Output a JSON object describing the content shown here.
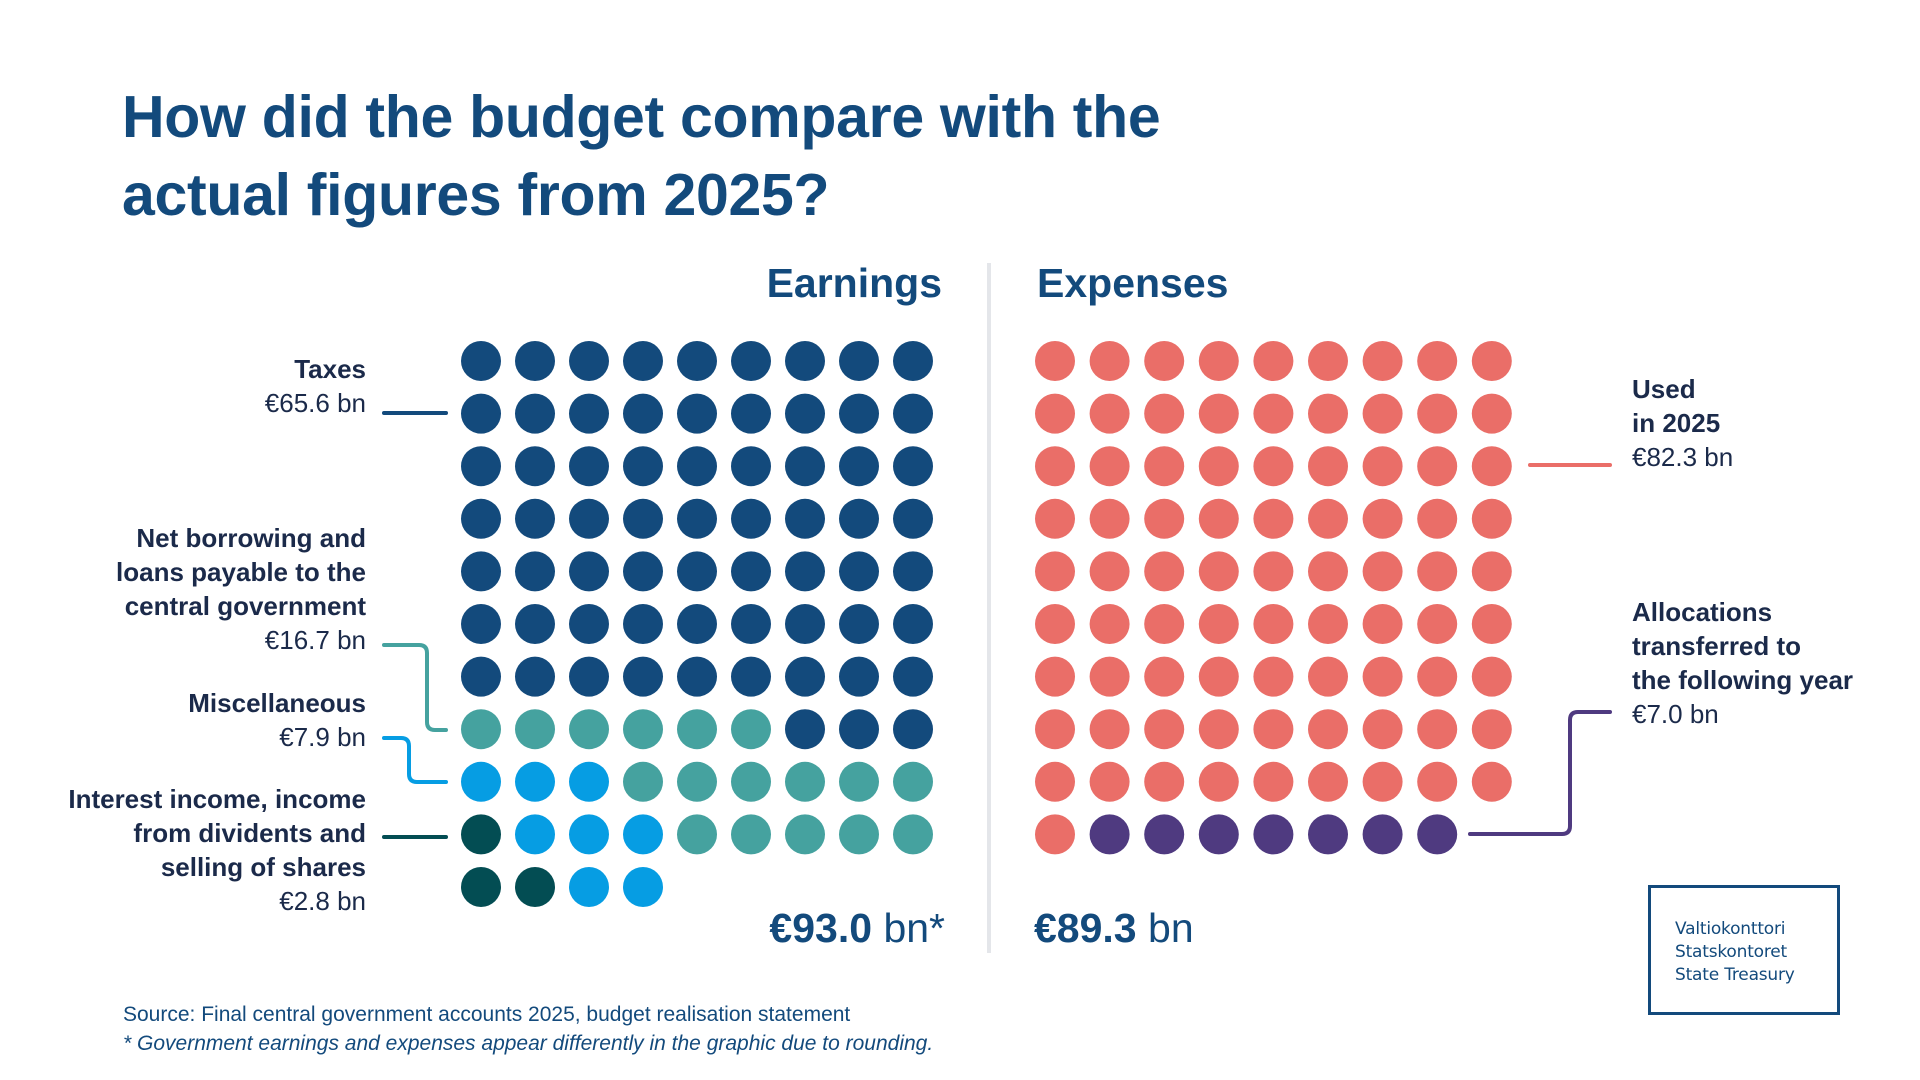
{
  "title_line1": "How did the budget compare with the",
  "title_line2": "actual figures from 2025?",
  "colors": {
    "title": "#134a7c",
    "taxes": "#134a7c",
    "net_borrowing": "#45a29f",
    "miscellaneous": "#069de3",
    "interest_income": "#034d53",
    "used": "#ea6e68",
    "allocations": "#4f3a80",
    "divider": "#e4e6ea"
  },
  "earnings": {
    "heading": "Earnings",
    "total_value": "€93.0",
    "total_unit": "bn*",
    "labels": [
      {
        "name": "Taxes",
        "value": "€65.6 bn"
      },
      {
        "name_lines": [
          "Net borrowing and",
          "loans payable to the",
          "central government"
        ],
        "value": "€16.7 bn"
      },
      {
        "name": "Miscellaneous",
        "value": "€7.9 bn"
      },
      {
        "name_lines": [
          "Interest income, income",
          "from dividents and",
          "selling of shares"
        ],
        "value": "€2.8 bn"
      }
    ]
  },
  "expenses": {
    "heading": "Expenses",
    "total_value": "€89.3",
    "total_unit": "bn",
    "labels": [
      {
        "name_lines": [
          "Used",
          "in 2025"
        ],
        "value": "€82.3 bn"
      },
      {
        "name_lines": [
          "Allocations",
          "transferred to",
          "the following year"
        ],
        "value": "€7.0 bn"
      }
    ]
  },
  "source": {
    "line": "Source: Final central government accounts 2025, budget realisation statement",
    "note": "* Government earnings and expenses appear differently in the graphic due to rounding."
  },
  "logo": [
    "Valtiokonttori",
    "Statskontoret",
    "State Treasury"
  ],
  "chart_data": {
    "type": "waffle",
    "title": "How did the budget compare with the actual figures from 2025?",
    "unit": "€ bn (1 dot ≈ €1 bn)",
    "panels": [
      {
        "name": "Earnings",
        "total": 93.0,
        "total_label": "€93.0 bn*",
        "columns": 9,
        "series": [
          {
            "name": "Taxes",
            "value": 65.6,
            "dots": 66,
            "color": "#134a7c"
          },
          {
            "name": "Net borrowing and loans payable to the central government",
            "value": 16.7,
            "dots": 17,
            "color": "#45a29f"
          },
          {
            "name": "Miscellaneous",
            "value": 7.9,
            "dots": 8,
            "color": "#069de3"
          },
          {
            "name": "Interest income, income from dividents and selling of shares",
            "value": 2.8,
            "dots": 3,
            "color": "#034d53"
          }
        ],
        "grid": [
          "AAAAAAAAA",
          "AAAAAAAAA",
          "AAAAAAAAA",
          "AAAAAAAAA",
          "AAAAAAAAA",
          "AAAAAAAAA",
          "AAAAAAAAA",
          "BBBBBBAAA",
          "CCCBBBBBB",
          "DCCCBBBBB",
          "DDCC"
        ]
      },
      {
        "name": "Expenses",
        "total": 89.3,
        "total_label": "€89.3 bn",
        "columns": 9,
        "series": [
          {
            "name": "Used in 2025",
            "value": 82.3,
            "dots": 82,
            "color": "#ea6e68"
          },
          {
            "name": "Allocations transferred to the following year",
            "value": 7.0,
            "dots": 7,
            "color": "#4f3a80"
          }
        ],
        "grid": [
          "AAAAAAAAA",
          "AAAAAAAAA",
          "AAAAAAAAA",
          "AAAAAAAAA",
          "AAAAAAAAA",
          "AAAAAAAAA",
          "AAAAAAAAA",
          "AAAAAAAAA",
          "AAAAAAAAA",
          "ABBBBBBB"
        ]
      }
    ],
    "legend": "labels-beside-with-connectors"
  }
}
